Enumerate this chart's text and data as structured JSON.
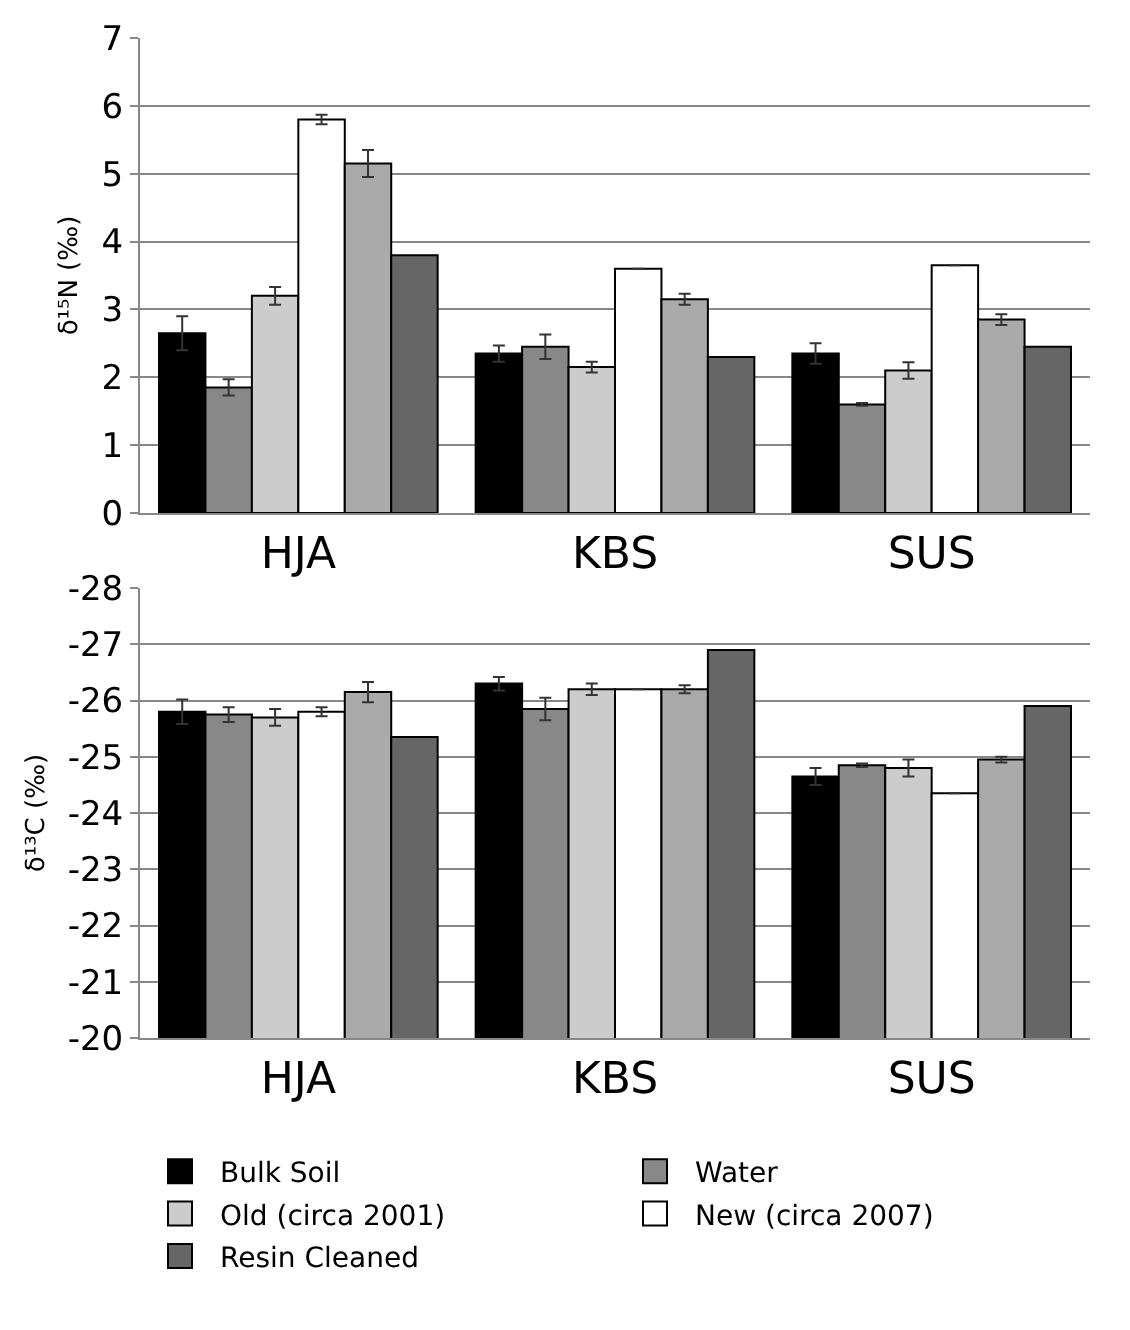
{
  "chart_data": [
    {
      "type": "bar",
      "ylabel": "δ¹⁵N (‰)",
      "categories": [
        "HJA",
        "KBS",
        "SUS"
      ],
      "ylim": [
        0,
        7
      ],
      "yticks": [
        0,
        1,
        2,
        3,
        4,
        5,
        6,
        7
      ],
      "grid": "y",
      "series": [
        {
          "color": "#000000",
          "values": [
            2.65,
            2.35,
            2.35
          ],
          "errors": [
            0.25,
            0.12,
            0.15
          ]
        },
        {
          "color": "#888888",
          "values": [
            1.85,
            2.45,
            1.6
          ],
          "errors": [
            0.12,
            0.18,
            0.02
          ]
        },
        {
          "color": "#cccccc",
          "values": [
            3.2,
            2.15,
            2.1
          ],
          "errors": [
            0.13,
            0.08,
            0.12
          ]
        },
        {
          "color": "#ffffff",
          "values": [
            5.8,
            3.6,
            3.65
          ],
          "errors": [
            0.07,
            null,
            null
          ]
        },
        {
          "color": "#aaaaaa",
          "values": [
            5.15,
            3.15,
            2.85
          ],
          "errors": [
            0.2,
            0.08,
            0.08
          ]
        },
        {
          "color": "#666666",
          "values": [
            3.8,
            2.3,
            2.45
          ],
          "errors": [
            null,
            null,
            null
          ]
        }
      ]
    },
    {
      "type": "bar",
      "ylabel": "δ¹³C (‰)",
      "categories": [
        "HJA",
        "KBS",
        "SUS"
      ],
      "ylim": [
        -20,
        -28
      ],
      "yticks": [
        -20,
        -21,
        -22,
        -23,
        -24,
        -25,
        -26,
        -27,
        -28
      ],
      "grid": "y",
      "legend": "bottom",
      "series": [
        {
          "name": "Bulk Soil",
          "color": "#000000",
          "values": [
            -25.8,
            -26.3,
            -24.65
          ],
          "errors": [
            0.22,
            0.12,
            0.15
          ]
        },
        {
          "name": "Water",
          "color": "#888888",
          "values": [
            -25.75,
            -25.85,
            -24.85
          ],
          "errors": [
            0.13,
            0.2,
            0.03
          ]
        },
        {
          "name": "Old (circa 2001)",
          "color": "#cccccc",
          "values": [
            -25.7,
            -26.2,
            -24.8
          ],
          "errors": [
            0.15,
            0.1,
            0.15
          ]
        },
        {
          "name": "New (circa 2007)",
          "color": "#ffffff",
          "values": [
            -25.8,
            -26.2,
            -24.35
          ],
          "errors": [
            0.08,
            null,
            null
          ]
        },
        {
          "color": "#aaaaaa",
          "values": [
            -26.15,
            -26.2,
            -24.95
          ],
          "errors": [
            0.18,
            0.07,
            0.05
          ]
        },
        {
          "name": "Resin Cleaned",
          "color": "#666666",
          "values": [
            -25.35,
            -26.9,
            -25.9
          ],
          "errors": [
            null,
            null,
            null
          ]
        }
      ]
    }
  ]
}
